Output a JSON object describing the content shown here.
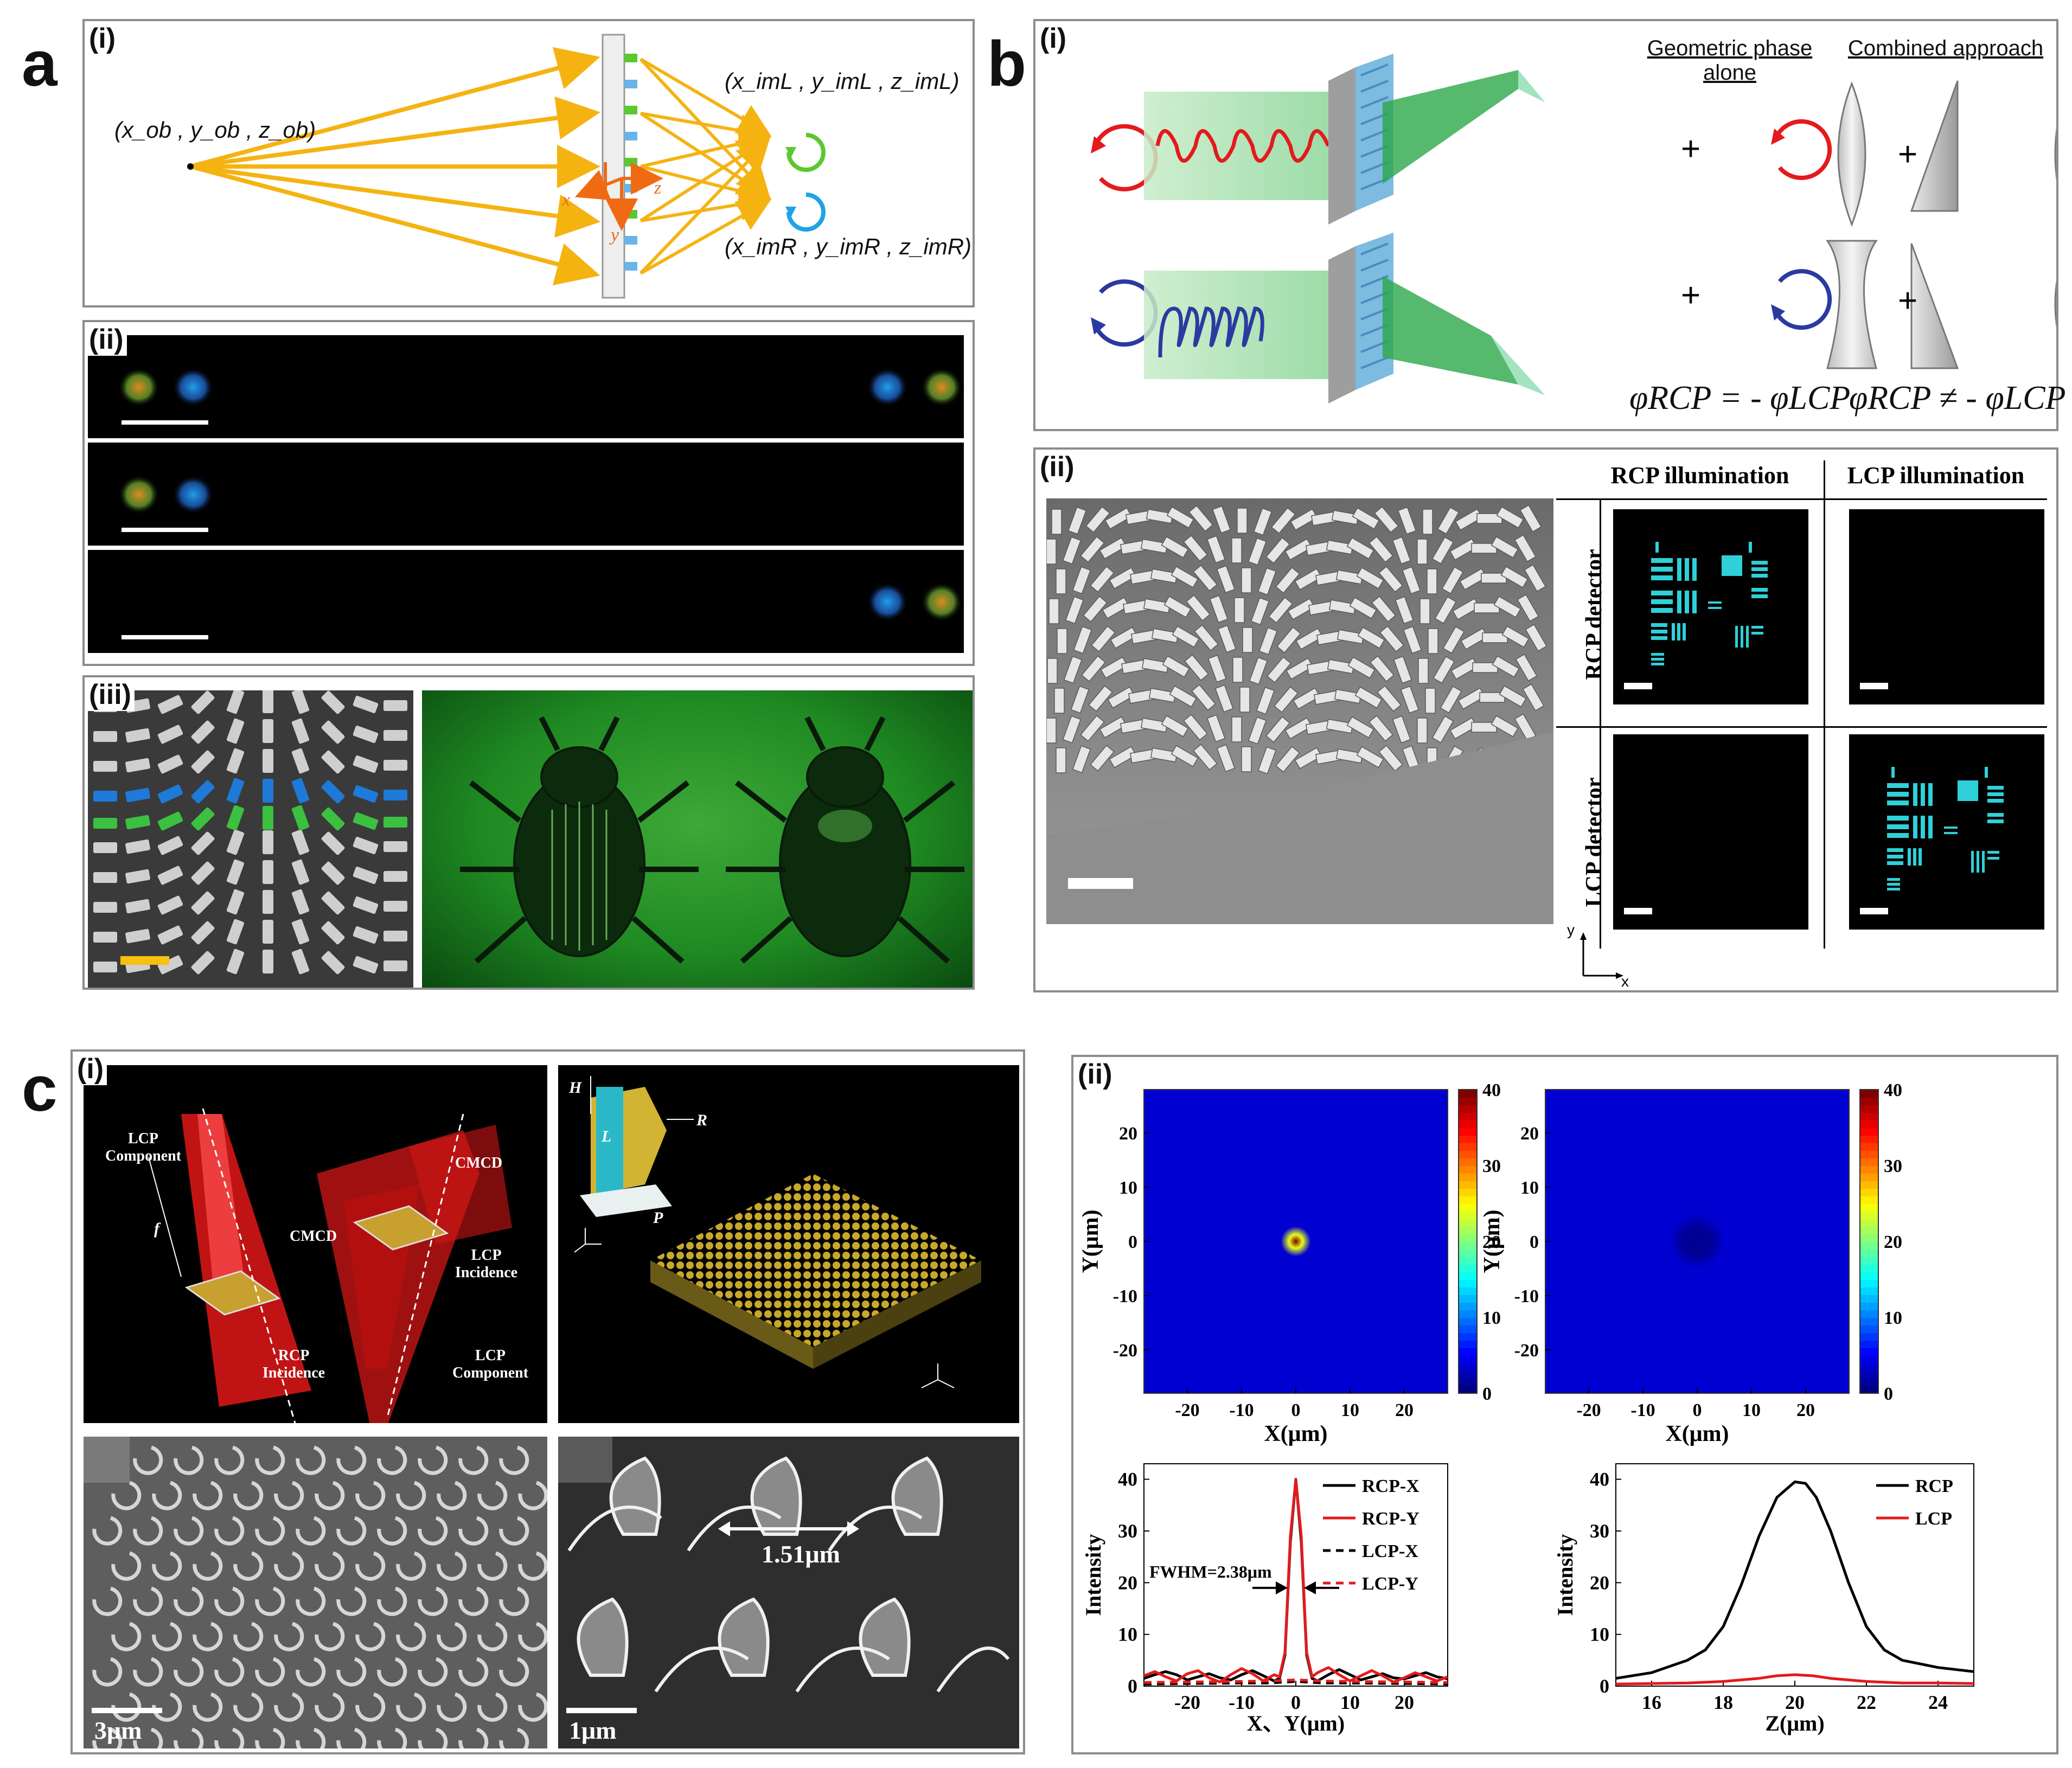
{
  "panels": {
    "a": {
      "letter": "a",
      "sub_i": "(i)",
      "sub_ii": "(ii)",
      "sub_iii": "(iii)",
      "object_label": "(x_ob , y_ob , z_ob)",
      "image_L_label": "(x_imL , y_imL , z_imL)",
      "image_R_label": "(x_imR , y_imR , z_imR)",
      "axis_x": "x",
      "axis_y": "y",
      "axis_z": "z"
    },
    "b": {
      "letter": "b",
      "sub_i": "(i)",
      "sub_ii": "(ii)",
      "col_geo": "Geometric phase",
      "col_geo2": "alone",
      "col_comb": "Combined approach",
      "plus": "+",
      "eq_geo": "φRCP = - φLCP",
      "eq_comb": "φRCP ≠ - φLCP",
      "rcp_illum": "RCP illumination",
      "lcp_illum": "LCP illumination",
      "rcp_det": "RCP detector",
      "lcp_det": "LCP detector",
      "ax_y": "y",
      "ax_x": "x"
    },
    "c": {
      "letter": "c",
      "sub_i": "(i)",
      "sub_ii": "(ii)",
      "lcp_component_1": "LCP",
      "lcp_component_1b": "Component",
      "cmcd_1": "CMCD",
      "f_label": "f",
      "rcp_inc": "RCP",
      "rcp_inc_b": "Incidence",
      "cmcd_2": "CMCD",
      "lcp_inc": "LCP",
      "lcp_inc_b": "Incidence",
      "lcp_component_2": "LCP",
      "lcp_component_2b": "Component",
      "H": "H",
      "L": "L",
      "R": "R",
      "P": "P",
      "sem_scale_1": "3μm",
      "sem_scale_2": "1μm",
      "sem_dim": "1.51μm"
    }
  },
  "colors": {
    "orange": "#f5b312",
    "green": "#5cc830",
    "blue": "#1ea3e6",
    "red": "#e41a1c",
    "darkblue": "#2b3aa0"
  },
  "chart_data": [
    {
      "type": "heatmap",
      "title": "",
      "xlabel": "X(μm)",
      "ylabel": "Y(μm)",
      "xticks": [
        "-20",
        "-10",
        "0",
        "10",
        "20"
      ],
      "yticks": [
        "20",
        "10",
        "0",
        "-10",
        "-20"
      ],
      "colorbar_ticks": [
        "40",
        "30",
        "20",
        "10",
        "0"
      ],
      "xlim": [
        -28,
        28
      ],
      "ylim": [
        -28,
        28
      ],
      "clim": [
        0,
        40
      ],
      "peak": {
        "x": 0,
        "y": 0,
        "value": 40
      }
    },
    {
      "type": "heatmap",
      "title": "",
      "xlabel": "X(μm)",
      "ylabel": "Y(μm)",
      "xticks": [
        "-20",
        "-10",
        "0",
        "10",
        "20"
      ],
      "yticks": [
        "20",
        "10",
        "0",
        "-10",
        "-20"
      ],
      "colorbar_ticks": [
        "40",
        "30",
        "20",
        "10",
        "0"
      ],
      "xlim": [
        -28,
        28
      ],
      "ylim": [
        -28,
        28
      ],
      "clim": [
        0,
        40
      ],
      "peak": {
        "x": 0,
        "y": 0,
        "value": 1
      }
    },
    {
      "type": "line",
      "xlabel": "X、Y(μm)",
      "ylabel": "Intensity",
      "xlim": [
        -28,
        28
      ],
      "ylim": [
        0,
        43
      ],
      "xticks": [
        "-20",
        "-10",
        "0",
        "10",
        "20"
      ],
      "yticks": [
        "0",
        "10",
        "20",
        "30",
        "40"
      ],
      "annotation": "FWHM=2.38μm",
      "series": [
        {
          "name": "RCP-X",
          "style": "solid",
          "color": "#000000",
          "x": [
            -28,
            -26,
            -24,
            -22,
            -20,
            -18,
            -16,
            -14,
            -12,
            -10,
            -8,
            -6,
            -4,
            -3,
            -2,
            -1,
            0,
            1,
            2,
            3,
            4,
            6,
            8,
            10,
            12,
            14,
            16,
            18,
            20,
            22,
            24,
            26,
            28
          ],
          "y": [
            1.5,
            2.2,
            2.8,
            2.2,
            1.2,
            1.8,
            2.4,
            1.6,
            1.2,
            2.2,
            3.0,
            2.0,
            1.0,
            1.5,
            6,
            28,
            40,
            28,
            6,
            1.5,
            1.0,
            2.2,
            3.2,
            2.2,
            1.2,
            1.8,
            2.4,
            1.6,
            1.4,
            2.0,
            2.6,
            1.8,
            1.4
          ]
        },
        {
          "name": "RCP-Y",
          "style": "solid",
          "color": "#e41a1c",
          "x": [
            -28,
            -26,
            -24,
            -22,
            -20,
            -18,
            -16,
            -14,
            -12,
            -10,
            -8,
            -6,
            -4,
            -3,
            -2,
            -1,
            0,
            1,
            2,
            3,
            4,
            6,
            8,
            10,
            12,
            14,
            16,
            18,
            20,
            22,
            24,
            26,
            28
          ],
          "y": [
            2.0,
            2.8,
            1.8,
            1.0,
            2.4,
            3.0,
            1.6,
            0.8,
            2.2,
            3.4,
            2.4,
            1.0,
            2.2,
            1.8,
            6.5,
            29,
            40,
            29,
            6.5,
            1.8,
            2.6,
            3.6,
            2.2,
            1.0,
            2.0,
            3.0,
            2.0,
            0.8,
            1.6,
            2.6,
            1.8,
            1.0,
            1.8
          ]
        },
        {
          "name": "LCP-X",
          "style": "dashed",
          "color": "#000000",
          "x": [
            -28,
            -20,
            -10,
            -5,
            0,
            5,
            10,
            20,
            28
          ],
          "y": [
            0.4,
            0.5,
            0.6,
            0.6,
            0.9,
            0.6,
            0.6,
            0.5,
            0.4
          ]
        },
        {
          "name": "LCP-Y",
          "style": "dashed",
          "color": "#e41a1c",
          "x": [
            -28,
            -20,
            -10,
            -5,
            0,
            5,
            10,
            20,
            28
          ],
          "y": [
            0.7,
            0.8,
            0.9,
            1.0,
            1.2,
            1.0,
            0.9,
            0.8,
            0.7
          ]
        }
      ]
    },
    {
      "type": "line",
      "xlabel": "Z(μm)",
      "ylabel": "Intensity",
      "xlim": [
        15,
        25
      ],
      "ylim": [
        0,
        43
      ],
      "xticks": [
        "16",
        "18",
        "20",
        "22",
        "24"
      ],
      "yticks": [
        "0",
        "10",
        "20",
        "30",
        "40"
      ],
      "series": [
        {
          "name": "RCP",
          "style": "solid",
          "color": "#000000",
          "x": [
            15,
            16,
            17,
            17.5,
            18,
            18.5,
            19,
            19.5,
            20,
            20.3,
            20.6,
            21,
            21.5,
            22,
            22.5,
            23,
            24,
            25
          ],
          "y": [
            1.5,
            2.6,
            5.0,
            7.0,
            11.5,
            19.5,
            29,
            36.5,
            39.5,
            39.2,
            36.5,
            30,
            20,
            11.5,
            7.0,
            5.0,
            3.6,
            2.8
          ]
        },
        {
          "name": "LCP",
          "style": "solid",
          "color": "#e41a1c",
          "x": [
            15,
            16,
            17,
            18,
            19,
            19.5,
            20,
            20.5,
            21,
            22,
            23,
            24,
            25
          ],
          "y": [
            0.4,
            0.5,
            0.6,
            0.9,
            1.5,
            2.0,
            2.2,
            2.0,
            1.5,
            0.9,
            0.6,
            0.6,
            0.5
          ]
        }
      ]
    }
  ]
}
